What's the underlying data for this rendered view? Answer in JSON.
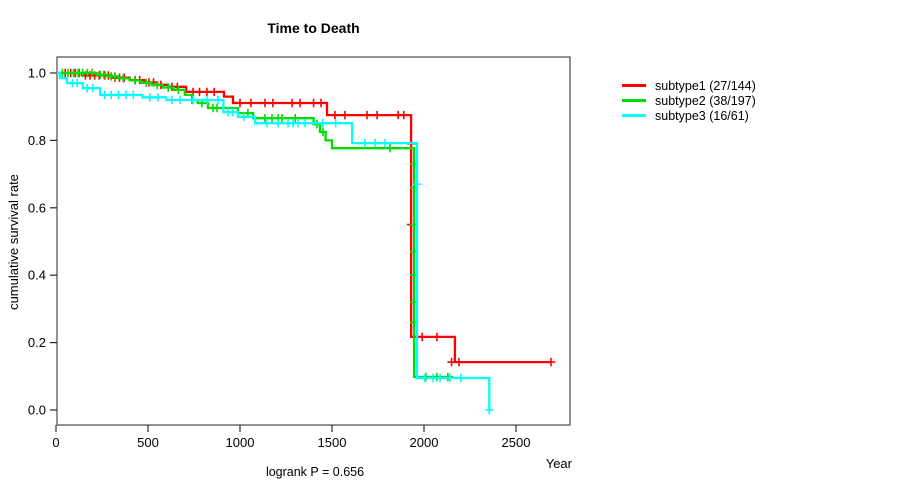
{
  "chart": {
    "title": "Time to Death",
    "x_label": "Year",
    "y_label": "cumulative survival rate",
    "footer": "logrank P = 0.656"
  },
  "chart_data": {
    "type": "line",
    "variant": "kaplan-meier-step",
    "title": "Time to Death",
    "xlabel": "Year",
    "ylabel": "cumulative survival rate",
    "xlim": [
      0,
      2790
    ],
    "ylim": [
      0.0,
      1.0
    ],
    "xticks": [
      0,
      500,
      1000,
      1500,
      2000,
      2500
    ],
    "yticks": [
      0.0,
      0.2,
      0.4,
      0.6,
      0.8,
      1.0
    ],
    "grid": false,
    "legend_position": "right-outside",
    "annotation": "logrank P = 0.656",
    "series": [
      {
        "name": "subtype1",
        "label": "subtype1 (27/144)",
        "color": "#ff0000",
        "events": 27,
        "n": 144,
        "start": [
          0,
          1.0
        ],
        "steps": [
          [
            140,
            0.993
          ],
          [
            300,
            0.986
          ],
          [
            400,
            0.979
          ],
          [
            480,
            0.972
          ],
          [
            550,
            0.965
          ],
          [
            610,
            0.959
          ],
          [
            707,
            0.944
          ],
          [
            913,
            0.93
          ],
          [
            962,
            0.911
          ],
          [
            1473,
            0.875
          ],
          [
            1930,
            0.217
          ],
          [
            2168,
            0.142
          ]
        ],
        "end_x": 2690,
        "censor_marks": [
          [
            50,
            1
          ],
          [
            80,
            1
          ],
          [
            105,
            1
          ],
          [
            125,
            1
          ],
          [
            160,
            0.993
          ],
          [
            185,
            0.993
          ],
          [
            210,
            0.993
          ],
          [
            235,
            0.993
          ],
          [
            265,
            0.993
          ],
          [
            285,
            0.993
          ],
          [
            320,
            0.986
          ],
          [
            345,
            0.986
          ],
          [
            370,
            0.986
          ],
          [
            430,
            0.979
          ],
          [
            455,
            0.979
          ],
          [
            505,
            0.972
          ],
          [
            530,
            0.972
          ],
          [
            570,
            0.965
          ],
          [
            630,
            0.959
          ],
          [
            660,
            0.959
          ],
          [
            745,
            0.944
          ],
          [
            780,
            0.944
          ],
          [
            820,
            0.944
          ],
          [
            860,
            0.944
          ],
          [
            1000,
            0.911
          ],
          [
            1060,
            0.911
          ],
          [
            1136,
            0.911
          ],
          [
            1179,
            0.911
          ],
          [
            1283,
            0.911
          ],
          [
            1326,
            0.911
          ],
          [
            1400,
            0.911
          ],
          [
            1440,
            0.911
          ],
          [
            1516,
            0.875
          ],
          [
            1570,
            0.875
          ],
          [
            1690,
            0.875
          ],
          [
            1745,
            0.875
          ],
          [
            1859,
            0.875
          ],
          [
            1890,
            0.875
          ],
          [
            1930,
            0.79
          ],
          [
            1930,
            0.55
          ],
          [
            1990,
            0.217
          ],
          [
            2070,
            0.217
          ],
          [
            2150,
            0.142
          ],
          [
            2190,
            0.142
          ],
          [
            2690,
            0.142
          ]
        ]
      },
      {
        "name": "subtype2",
        "label": "subtype2 (38/197)",
        "color": "#00dd00",
        "events": 38,
        "n": 197,
        "start": [
          0,
          1.0
        ],
        "steps": [
          [
            220,
            0.995
          ],
          [
            280,
            0.99
          ],
          [
            340,
            0.984
          ],
          [
            400,
            0.978
          ],
          [
            460,
            0.971
          ],
          [
            520,
            0.964
          ],
          [
            580,
            0.957
          ],
          [
            640,
            0.95
          ],
          [
            700,
            0.935
          ],
          [
            740,
            0.92
          ],
          [
            770,
            0.911
          ],
          [
            826,
            0.896
          ],
          [
            989,
            0.881
          ],
          [
            1071,
            0.866
          ],
          [
            1400,
            0.848
          ],
          [
            1435,
            0.825
          ],
          [
            1465,
            0.8
          ],
          [
            1500,
            0.777
          ],
          [
            1946,
            0.098
          ]
        ],
        "end_x": 2158,
        "censor_marks": [
          [
            35,
            1
          ],
          [
            65,
            1
          ],
          [
            95,
            1
          ],
          [
            120,
            1
          ],
          [
            145,
            1
          ],
          [
            170,
            1
          ],
          [
            195,
            1
          ],
          [
            240,
            0.995
          ],
          [
            260,
            0.995
          ],
          [
            300,
            0.99
          ],
          [
            320,
            0.99
          ],
          [
            365,
            0.984
          ],
          [
            430,
            0.978
          ],
          [
            490,
            0.971
          ],
          [
            550,
            0.964
          ],
          [
            610,
            0.957
          ],
          [
            665,
            0.95
          ],
          [
            739,
            0.92
          ],
          [
            793,
            0.911
          ],
          [
            853,
            0.896
          ],
          [
            875,
            0.896
          ],
          [
            1043,
            0.881
          ],
          [
            1136,
            0.866
          ],
          [
            1174,
            0.866
          ],
          [
            1207,
            0.866
          ],
          [
            1228,
            0.866
          ],
          [
            1300,
            0.866
          ],
          [
            1418,
            0.848
          ],
          [
            1451,
            0.825
          ],
          [
            1815,
            0.777
          ],
          [
            1946,
            0.73
          ],
          [
            1946,
            0.66
          ],
          [
            1946,
            0.55
          ],
          [
            1946,
            0.47
          ],
          [
            1946,
            0.4
          ],
          [
            1946,
            0.32
          ],
          [
            1946,
            0.26
          ],
          [
            2010,
            0.098
          ],
          [
            2070,
            0.098
          ],
          [
            2130,
            0.098
          ]
        ]
      },
      {
        "name": "subtype3",
        "label": "subtype3 (16/61)",
        "color": "#00ffff",
        "events": 16,
        "n": 61,
        "start": [
          0,
          1.0
        ],
        "steps": [
          [
            22,
            0.985
          ],
          [
            60,
            0.97
          ],
          [
            145,
            0.955
          ],
          [
            240,
            0.935
          ],
          [
            470,
            0.928
          ],
          [
            600,
            0.92
          ],
          [
            910,
            0.884
          ],
          [
            989,
            0.87
          ],
          [
            1082,
            0.851
          ],
          [
            1609,
            0.792
          ],
          [
            1962,
            0.095
          ],
          [
            2355,
            0.0
          ]
        ],
        "end_x": 2362,
        "censor_marks": [
          [
            90,
            0.97
          ],
          [
            115,
            0.97
          ],
          [
            170,
            0.955
          ],
          [
            200,
            0.955
          ],
          [
            265,
            0.935
          ],
          [
            300,
            0.935
          ],
          [
            340,
            0.935
          ],
          [
            380,
            0.935
          ],
          [
            420,
            0.935
          ],
          [
            510,
            0.928
          ],
          [
            554,
            0.928
          ],
          [
            630,
            0.92
          ],
          [
            674,
            0.92
          ],
          [
            745,
            0.92
          ],
          [
            821,
            0.92
          ],
          [
            880,
            0.92
          ],
          [
            935,
            0.884
          ],
          [
            960,
            0.884
          ],
          [
            1020,
            0.87
          ],
          [
            1147,
            0.851
          ],
          [
            1207,
            0.851
          ],
          [
            1261,
            0.851
          ],
          [
            1288,
            0.851
          ],
          [
            1315,
            0.851
          ],
          [
            1353,
            0.851
          ],
          [
            1450,
            0.851
          ],
          [
            1520,
            0.851
          ],
          [
            1679,
            0.792
          ],
          [
            1734,
            0.792
          ],
          [
            1788,
            0.792
          ],
          [
            1962,
            0.67
          ],
          [
            2005,
            0.095
          ],
          [
            2049,
            0.095
          ],
          [
            2087,
            0.095
          ],
          [
            2140,
            0.095
          ],
          [
            2200,
            0.095
          ],
          [
            2355,
            0.0
          ]
        ]
      }
    ]
  }
}
